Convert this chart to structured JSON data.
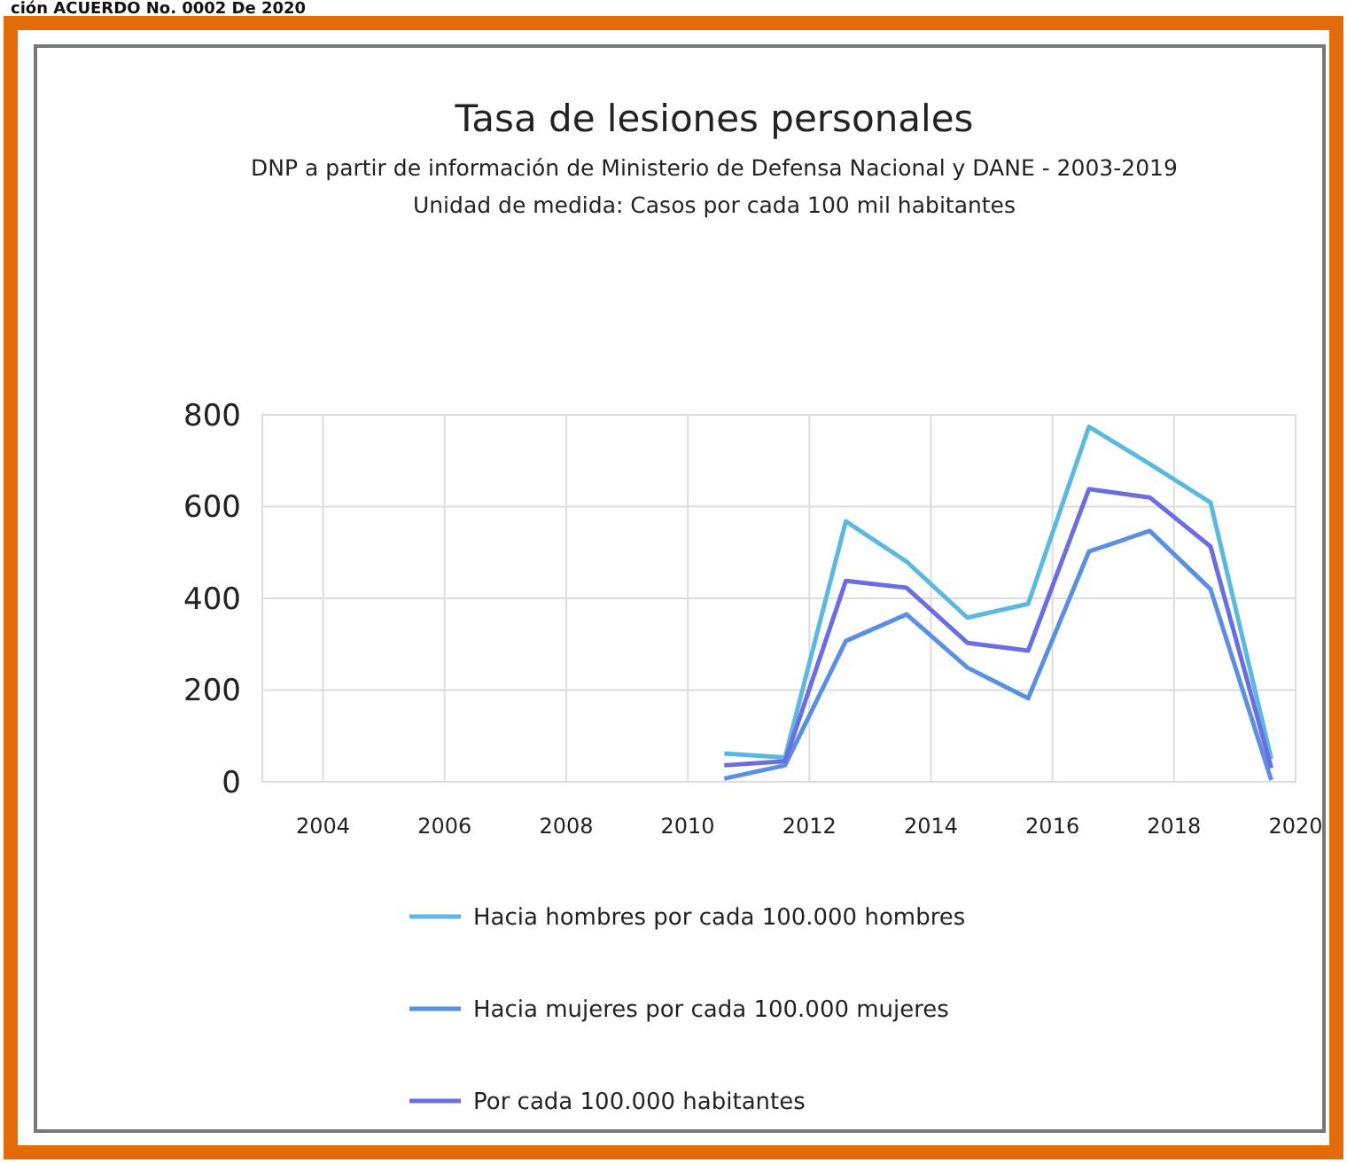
{
  "chart_data": {
    "type": "line",
    "title": "Tasa de lesiones personales",
    "subtitle": "DNP a partir de información de Ministerio de Defensa Nacional y DANE - 2003-2019\nUnidad de medida: Casos por cada 100 mil habitantes",
    "annotations": [
      "ción ACUERDO No. 0002 De 2020"
    ],
    "x": [
      2010.6,
      2011.6,
      2012.6,
      2013.6,
      2014.6,
      2015.6,
      2016.6,
      2017.6,
      2018.6,
      2019.6
    ],
    "series": [
      {
        "name": "Hacia hombres por cada 100.000 hombres",
        "color": "#5bb8e0",
        "values": [
          62,
          53,
          568,
          480,
          358,
          388,
          774,
          693,
          609,
          50
        ]
      },
      {
        "name": "Hacia mujeres por cada 100.000 mujeres",
        "color": "#5b8fe0",
        "values": [
          7,
          36,
          307,
          365,
          249,
          182,
          502,
          547,
          420,
          4
        ]
      },
      {
        "name": "Por cada 100.000 habitantes",
        "color": "#6a6ee0",
        "values": [
          36,
          45,
          438,
          423,
          303,
          286,
          638,
          620,
          513,
          30
        ]
      }
    ],
    "xlim": [
      2003,
      2020
    ],
    "xticks": [
      2004,
      2006,
      2008,
      2010,
      2012,
      2014,
      2016,
      2018,
      2020
    ],
    "ylim": [
      0,
      800
    ],
    "yticks": [
      0,
      200,
      400,
      600,
      800
    ],
    "grid": true,
    "legend": "bottom",
    "marker": "none",
    "line_style": "solid"
  }
}
